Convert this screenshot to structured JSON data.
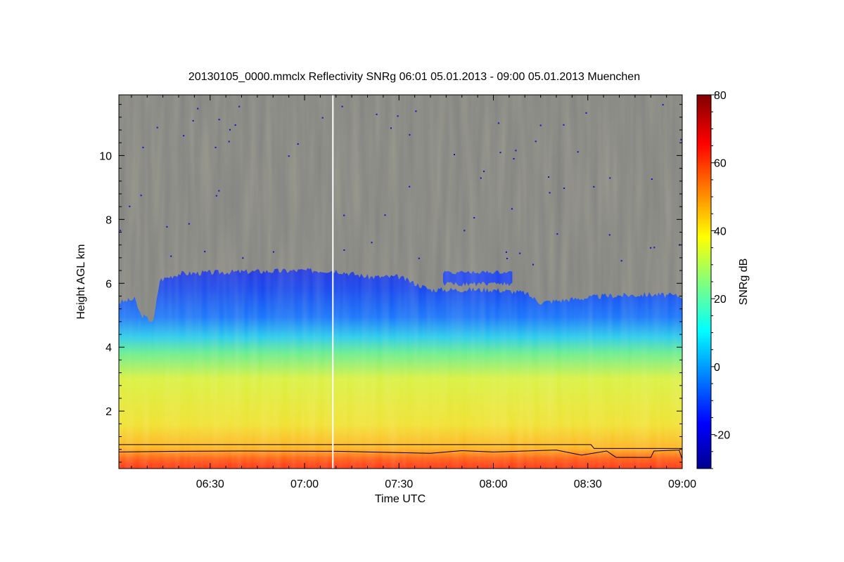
{
  "chart_data": {
    "type": "heatmap",
    "title": "20130105_0000.mmclx Reflectivity SNRg   06:01 05.01.2013 - 09:00 05.01.2013 Muenchen",
    "xlabel": "Time UTC",
    "ylabel": "Height AGL km",
    "xlim_minutes_utc": [
      361,
      540
    ],
    "ylim_km": [
      0.2,
      11.9
    ],
    "x_ticks": [
      {
        "minute": 390,
        "label": "06:30"
      },
      {
        "minute": 420,
        "label": "07:00"
      },
      {
        "minute": 450,
        "label": "07:30"
      },
      {
        "minute": 480,
        "label": "08:00"
      },
      {
        "minute": 510,
        "label": "08:30"
      },
      {
        "minute": 540,
        "label": "09:00"
      }
    ],
    "y_ticks": [
      {
        "value": 2,
        "label": "2"
      },
      {
        "value": 4,
        "label": "4"
      },
      {
        "value": 6,
        "label": "6"
      },
      {
        "value": 8,
        "label": "8"
      },
      {
        "value": 10,
        "label": "10"
      }
    ],
    "colorbar": {
      "label": "SNRg dB",
      "range": [
        -30,
        80
      ],
      "ticks": [
        {
          "value": -20,
          "label": "-20"
        },
        {
          "value": 0,
          "label": "0"
        },
        {
          "value": 20,
          "label": "20"
        },
        {
          "value": 40,
          "label": "40"
        },
        {
          "value": 60,
          "label": "60"
        },
        {
          "value": 80,
          "label": "80"
        }
      ]
    },
    "no_signal_color": "#808080",
    "marker_line_minute": 429,
    "cloud_top_km": [
      {
        "minute": 361,
        "top": 5.4
      },
      {
        "minute": 366,
        "top": 5.5
      },
      {
        "minute": 368,
        "top": 5.0
      },
      {
        "minute": 372,
        "top": 4.8
      },
      {
        "minute": 374,
        "top": 6.1
      },
      {
        "minute": 380,
        "top": 6.3
      },
      {
        "minute": 395,
        "top": 6.35
      },
      {
        "minute": 420,
        "top": 6.4
      },
      {
        "minute": 430,
        "top": 6.4
      },
      {
        "minute": 440,
        "top": 6.2
      },
      {
        "minute": 450,
        "top": 6.2
      },
      {
        "minute": 455,
        "top": 6.0
      },
      {
        "minute": 460,
        "top": 5.8
      },
      {
        "minute": 465,
        "top": 5.8
      },
      {
        "minute": 470,
        "top": 5.8
      },
      {
        "minute": 480,
        "top": 5.8
      },
      {
        "minute": 490,
        "top": 5.7
      },
      {
        "minute": 495,
        "top": 5.4
      },
      {
        "minute": 505,
        "top": 5.5
      },
      {
        "minute": 515,
        "top": 5.6
      },
      {
        "minute": 530,
        "top": 5.65
      },
      {
        "minute": 540,
        "top": 5.6
      }
    ],
    "elevated_cloud": {
      "minute_range": [
        464,
        486
      ],
      "top_km": 6.4,
      "base_km": 5.9
    },
    "snr_profile_dB": [
      {
        "h": 0.2,
        "snr": 70
      },
      {
        "h": 0.6,
        "snr": 62
      },
      {
        "h": 1.0,
        "snr": 48
      },
      {
        "h": 2.0,
        "snr": 40
      },
      {
        "h": 3.0,
        "snr": 33
      },
      {
        "h": 4.0,
        "snr": 18
      },
      {
        "h": 5.0,
        "snr": 4
      },
      {
        "h": 6.0,
        "snr": -10
      },
      {
        "h": 6.4,
        "snr": -20
      }
    ],
    "line_upper_km": [
      {
        "minute": 361,
        "h": 0.95
      },
      {
        "minute": 511,
        "h": 0.95
      },
      {
        "minute": 512,
        "h": 0.83
      },
      {
        "minute": 540,
        "h": 0.83
      }
    ],
    "line_lower_km": [
      {
        "minute": 361,
        "h": 0.72
      },
      {
        "minute": 380,
        "h": 0.74
      },
      {
        "minute": 400,
        "h": 0.75
      },
      {
        "minute": 430,
        "h": 0.74
      },
      {
        "minute": 460,
        "h": 0.68
      },
      {
        "minute": 470,
        "h": 0.76
      },
      {
        "minute": 480,
        "h": 0.72
      },
      {
        "minute": 500,
        "h": 0.78
      },
      {
        "minute": 508,
        "h": 0.62
      },
      {
        "minute": 516,
        "h": 0.75
      },
      {
        "minute": 519,
        "h": 0.55
      },
      {
        "minute": 530,
        "h": 0.55
      },
      {
        "minute": 531,
        "h": 0.75
      },
      {
        "minute": 539,
        "h": 0.78
      },
      {
        "minute": 540,
        "h": 0.5
      }
    ]
  }
}
